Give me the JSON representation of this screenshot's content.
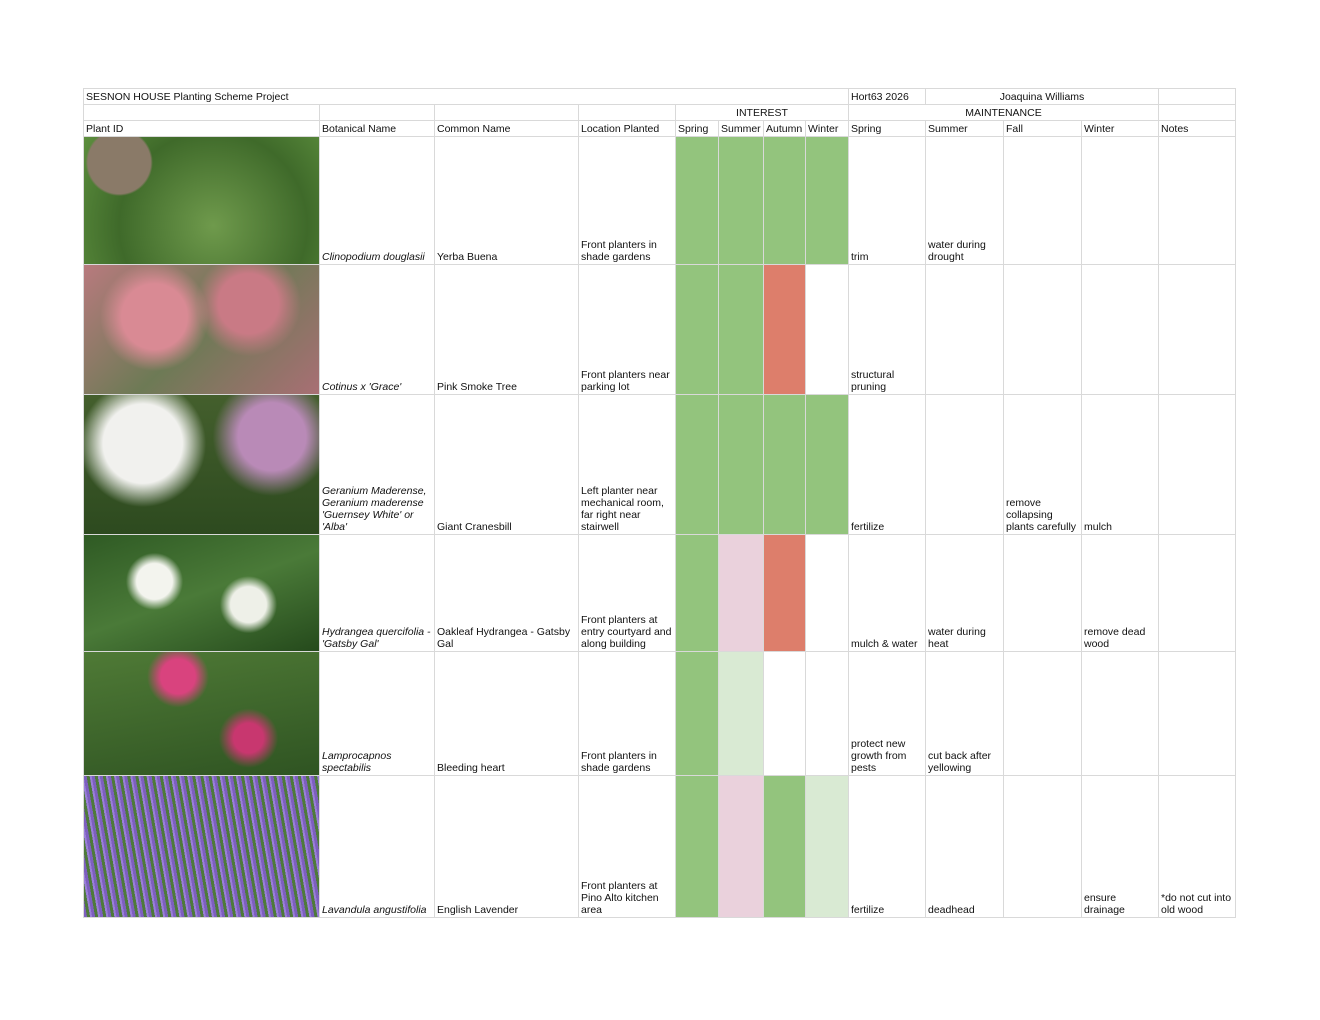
{
  "header": {
    "title": "SESNON HOUSE Planting Scheme Project",
    "course": "Hort63 2026",
    "author": "Joaquina Williams"
  },
  "groups": {
    "interest": "INTEREST",
    "maintenance": "MAINTENANCE"
  },
  "columns": [
    "Plant ID",
    "Botanical Name",
    "Common Name",
    "Location Planted",
    "Spring",
    "Summer",
    "Autumn",
    "Winter",
    "Spring",
    "Summer",
    "Fall",
    "Winter",
    "Notes"
  ],
  "rows": [
    {
      "botanical": "Clinopodium douglasii",
      "common": "Yerba Buena",
      "location": "Front planters in shade gardens",
      "interest": [
        "#93c47d",
        "#93c47d",
        "#93c47d",
        "#93c47d"
      ],
      "maintenance": {
        "spring": "trim",
        "summer": "water during drought"
      }
    },
    {
      "botanical": "Cotinus x 'Grace'",
      "common": "Pink Smoke Tree",
      "location": "Front planters near parking lot",
      "interest": [
        "#93c47d",
        "#93c47d",
        "#dd7e6b",
        "#ffffff"
      ],
      "maintenance": {
        "spring": "structural pruning"
      }
    },
    {
      "botanical": "Geranium Maderense, Geranium maderense 'Guernsey White' or 'Alba'",
      "common": "Giant Cranesbill",
      "location": "Left planter near mechanical room, far right near stairwell",
      "interest": [
        "#93c47d",
        "#93c47d",
        "#93c47d",
        "#93c47d"
      ],
      "maintenance": {
        "spring": "fertilize",
        "fall": "remove collapsing plants carefully",
        "winter": "mulch"
      }
    },
    {
      "botanical": "Hydrangea quercifolia - 'Gatsby Gal'",
      "common": "Oakleaf Hydrangea - Gatsby Gal",
      "location": "Front planters at entry courtyard and along building",
      "interest": [
        "#93c47d",
        "#ead1dc",
        "#dd7e6b",
        "#ffffff"
      ],
      "maintenance": {
        "spring": "mulch & water",
        "summer": "water during heat",
        "winter": "remove dead wood"
      }
    },
    {
      "botanical": "Lamprocapnos spectabilis",
      "common": "Bleeding heart",
      "location": "Front planters in shade gardens",
      "interest": [
        "#93c47d",
        "#d9ead3",
        "#ffffff",
        "#ffffff"
      ],
      "maintenance": {
        "spring": "protect new growth from pests",
        "summer": "cut back after yellowing"
      }
    },
    {
      "botanical": "Lavandula angustifolia",
      "common": "English Lavender",
      "location": "Front planters at Pino Alto kitchen area",
      "interest": [
        "#93c47d",
        "#ead1dc",
        "#93c47d",
        "#d9ead3"
      ],
      "maintenance": {
        "spring": "fertilize",
        "summer": "deadhead",
        "winter": "ensure drainage"
      },
      "notes": "*do not cut into old wood"
    }
  ]
}
